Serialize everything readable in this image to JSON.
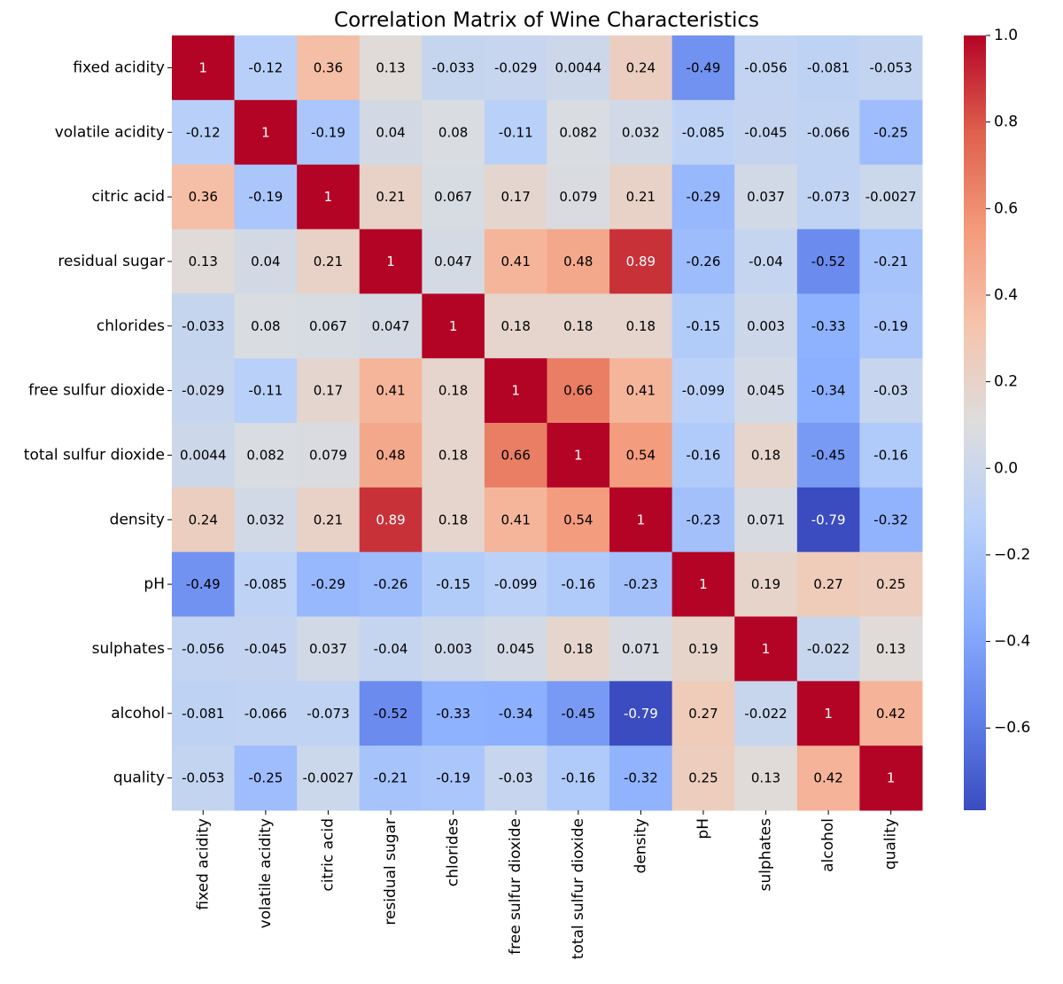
{
  "chart_data": {
    "type": "heatmap",
    "title": "Correlation Matrix of Wine Characteristics",
    "colormap": "coolwarm",
    "vmin": -0.79,
    "vmax": 1.0,
    "labels": [
      "fixed acidity",
      "volatile acidity",
      "citric acid",
      "residual sugar",
      "chlorides",
      "free sulfur dioxide",
      "total sulfur dioxide",
      "density",
      "pH",
      "sulphates",
      "alcohol",
      "quality"
    ],
    "cell_labels": [
      [
        "1",
        "-0.12",
        "0.36",
        "0.13",
        "-0.033",
        "-0.029",
        "0.0044",
        "0.24",
        "-0.49",
        "-0.056",
        "-0.081",
        "-0.053"
      ],
      [
        "-0.12",
        "1",
        "-0.19",
        "0.04",
        "0.08",
        "-0.11",
        "0.082",
        "0.032",
        "-0.085",
        "-0.045",
        "-0.066",
        "-0.25"
      ],
      [
        "0.36",
        "-0.19",
        "1",
        "0.21",
        "0.067",
        "0.17",
        "0.079",
        "0.21",
        "-0.29",
        "0.037",
        "-0.073",
        "-0.0027"
      ],
      [
        "0.13",
        "0.04",
        "0.21",
        "1",
        "0.047",
        "0.41",
        "0.48",
        "0.89",
        "-0.26",
        "-0.04",
        "-0.52",
        "-0.21"
      ],
      [
        "-0.033",
        "0.08",
        "0.067",
        "0.047",
        "1",
        "0.18",
        "0.18",
        "0.18",
        "-0.15",
        "0.003",
        "-0.33",
        "-0.19"
      ],
      [
        "-0.029",
        "-0.11",
        "0.17",
        "0.41",
        "0.18",
        "1",
        "0.66",
        "0.41",
        "-0.099",
        "0.045",
        "-0.34",
        "-0.03"
      ],
      [
        "0.0044",
        "0.082",
        "0.079",
        "0.48",
        "0.18",
        "0.66",
        "1",
        "0.54",
        "-0.16",
        "0.18",
        "-0.45",
        "-0.16"
      ],
      [
        "0.24",
        "0.032",
        "0.21",
        "0.89",
        "0.18",
        "0.41",
        "0.54",
        "1",
        "-0.23",
        "0.071",
        "-0.79",
        "-0.32"
      ],
      [
        "-0.49",
        "-0.085",
        "-0.29",
        "-0.26",
        "-0.15",
        "-0.099",
        "-0.16",
        "-0.23",
        "1",
        "0.19",
        "0.27",
        "0.25"
      ],
      [
        "-0.056",
        "-0.045",
        "0.037",
        "-0.04",
        "0.003",
        "0.045",
        "0.18",
        "0.071",
        "0.19",
        "1",
        "-0.022",
        "0.13"
      ],
      [
        "-0.081",
        "-0.066",
        "-0.073",
        "-0.52",
        "-0.33",
        "-0.34",
        "-0.45",
        "-0.79",
        "0.27",
        "-0.022",
        "1",
        "0.42"
      ],
      [
        "-0.053",
        "-0.25",
        "-0.0027",
        "-0.21",
        "-0.19",
        "-0.03",
        "-0.16",
        "-0.32",
        "0.25",
        "0.13",
        "0.42",
        "1"
      ]
    ],
    "colorbar": {
      "ticks": [
        1.0,
        0.8,
        0.6,
        0.4,
        0.2,
        0.0,
        -0.2,
        -0.4,
        -0.6
      ],
      "tick_labels": [
        "1.0",
        "0.8",
        "0.6",
        "0.4",
        "0.2",
        "0.0",
        "−0.2",
        "−0.4",
        "−0.6"
      ]
    }
  }
}
